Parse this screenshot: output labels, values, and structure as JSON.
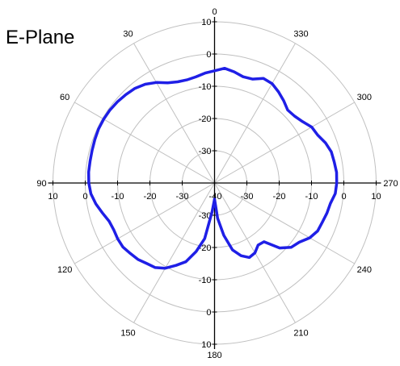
{
  "chart_data": {
    "type": "polar-line",
    "title": "E-Plane",
    "angular_unit": "degrees",
    "angle_zero_at": "top",
    "angle_direction": "counterclockwise",
    "radial_range": [
      -40,
      10
    ],
    "radial_step": 10,
    "angle_tick_labels": [
      "0",
      "30",
      "60",
      "90",
      "120",
      "150",
      "180",
      "210",
      "240",
      "270",
      "300",
      "330"
    ],
    "radial_tick_labels": [
      "-40",
      "-30",
      "-20",
      "-10",
      "0",
      "10"
    ],
    "grid": true,
    "line_color": "#1f1fe6",
    "series": [
      {
        "angles": [
          0,
          5,
          10,
          15,
          20,
          25,
          30,
          35,
          40,
          45,
          50,
          55,
          60,
          65,
          70,
          75,
          80,
          85,
          90,
          95,
          100,
          105,
          110,
          115,
          120,
          125,
          130,
          135,
          140,
          145,
          150,
          155,
          160,
          165,
          170,
          175,
          180,
          185,
          190,
          195,
          200,
          205,
          210,
          215,
          220,
          225,
          230,
          235,
          240,
          245,
          250,
          255,
          260,
          265,
          270,
          275,
          280,
          285,
          290,
          295,
          300,
          305,
          310,
          315,
          320,
          325,
          330,
          335,
          340,
          345,
          350,
          355
        ],
        "values": [
          -5.2,
          -5.8,
          -6.6,
          -6.9,
          -6.6,
          -5.7,
          -4.0,
          -2.6,
          -1.7,
          -1.2,
          -0.8,
          -0.5,
          -0.4,
          -0.4,
          -0.6,
          -0.8,
          -0.9,
          -0.9,
          -1.1,
          -1.6,
          -2.7,
          -4.1,
          -5.3,
          -5.6,
          -5.4,
          -5.4,
          -6.0,
          -6.5,
          -7.4,
          -8.0,
          -9.5,
          -11.8,
          -14.0,
          -18.0,
          -22.5,
          -31.0,
          -35.0,
          -29.0,
          -23.5,
          -18.5,
          -16.0,
          -14.5,
          -15.0,
          -16.5,
          -16.2,
          -11.5,
          -9.0,
          -8.0,
          -6.0,
          -4.8,
          -4.5,
          -4.0,
          -3.6,
          -2.5,
          -2.2,
          -2.1,
          -2.4,
          -2.6,
          -3.5,
          -4.8,
          -5.3,
          -6.8,
          -7.7,
          -8.0,
          -6.7,
          -5.5,
          -4.4,
          -4.2,
          -5.7,
          -5.9,
          -5.0,
          -4.3
        ]
      }
    ]
  }
}
